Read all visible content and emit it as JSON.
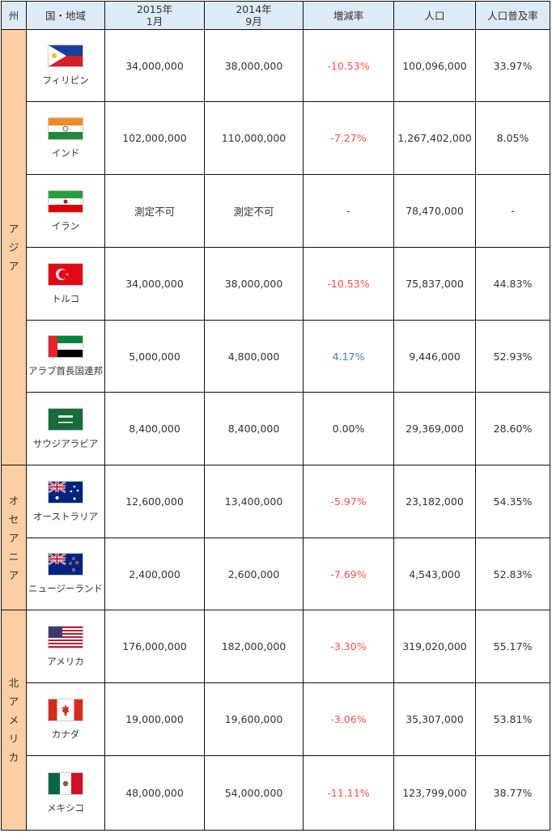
{
  "header": {
    "region": "州",
    "country": "国・地域",
    "jan2015_line1": "2015年",
    "jan2015_line2": "1月",
    "sep2014_line1": "2014年",
    "sep2014_line2": "9月",
    "change": "増減率",
    "population": "人口",
    "penetration": "人口普及率"
  },
  "regions": {
    "asia": [
      "ア",
      "ジ",
      "ア"
    ],
    "oceania": [
      "オ",
      "セ",
      "ア",
      "ニ",
      "ア"
    ],
    "north_america": [
      "北",
      "ア",
      "メ",
      "リ",
      "カ"
    ]
  },
  "rows": [
    {
      "country": "フィリピン",
      "flag": "philippines-flag",
      "jan2015": "34,000,000",
      "sep2014": "38,000,000",
      "change": "-10.53%",
      "change_sign": "neg",
      "population": "100,096,000",
      "penetration": "33.97%"
    },
    {
      "country": "インド",
      "flag": "india-flag",
      "jan2015": "102,000,000",
      "sep2014": "110,000,000",
      "change": "-7.27%",
      "change_sign": "neg",
      "population": "1,267,402,000",
      "penetration": "8.05%"
    },
    {
      "country": "イラン",
      "flag": "iran-flag",
      "jan2015": "測定不可",
      "sep2014": "測定不可",
      "change": "-",
      "change_sign": "none",
      "population": "78,470,000",
      "penetration": "-"
    },
    {
      "country": "トルコ",
      "flag": "turkey-flag",
      "jan2015": "34,000,000",
      "sep2014": "38,000,000",
      "change": "-10.53%",
      "change_sign": "neg",
      "population": "75,837,000",
      "penetration": "44.83%"
    },
    {
      "country": "アラブ首長国連邦",
      "flag": "uae-flag",
      "jan2015": "5,000,000",
      "sep2014": "4,800,000",
      "change": "4.17%",
      "change_sign": "pos",
      "population": "9,446,000",
      "penetration": "52.93%"
    },
    {
      "country": "サウジアラビア",
      "flag": "saudi-arabia-flag",
      "jan2015": "8,400,000",
      "sep2014": "8,400,000",
      "change": "0.00%",
      "change_sign": "none",
      "population": "29,369,000",
      "penetration": "28.60%"
    },
    {
      "country": "オーストラリア",
      "flag": "australia-flag",
      "jan2015": "12,600,000",
      "sep2014": "13,400,000",
      "change": "-5.97%",
      "change_sign": "neg",
      "population": "23,182,000",
      "penetration": "54.35%"
    },
    {
      "country": "ニュージーランド",
      "flag": "new-zealand-flag",
      "jan2015": "2,400,000",
      "sep2014": "2,600,000",
      "change": "-7.69%",
      "change_sign": "neg",
      "population": "4,543,000",
      "penetration": "52.83%"
    },
    {
      "country": "アメリカ",
      "flag": "usa-flag",
      "jan2015": "176,000,000",
      "sep2014": "182,000,000",
      "change": "-3.30%",
      "change_sign": "neg",
      "population": "319,020,000",
      "penetration": "55.17%"
    },
    {
      "country": "カナダ",
      "flag": "canada-flag",
      "jan2015": "19,000,000",
      "sep2014": "19,600,000",
      "change": "-3.06%",
      "change_sign": "neg",
      "population": "35,307,000",
      "penetration": "53.81%"
    },
    {
      "country": "メキシコ",
      "flag": "mexico-flag",
      "jan2015": "48,000,000",
      "sep2014": "54,000,000",
      "change": "-11.11%",
      "change_sign": "neg",
      "population": "123,799,000",
      "penetration": "38.77%"
    }
  ],
  "colors": {
    "header_bg": "#ddebf7",
    "region_bg": "#fbcfa3",
    "negative": "#ff4d4d",
    "positive": "#3d7fd0"
  }
}
